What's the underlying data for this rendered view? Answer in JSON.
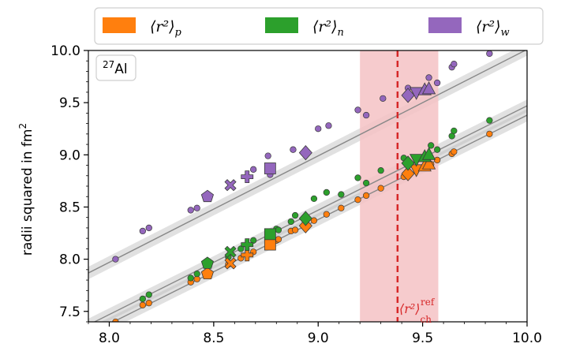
{
  "chart_data": {
    "type": "scatter",
    "title": "",
    "xlabel": "",
    "ylabel": "radii squared in fm",
    "ylabel_sup": "2",
    "xlim": [
      7.9,
      10.0
    ],
    "ylim": [
      7.4,
      10.0
    ],
    "x_ticks": [
      8.0,
      8.5,
      9.0,
      9.5,
      10.0
    ],
    "x_tick_labels": [
      "8.0",
      "8.5",
      "9.0",
      "9.5",
      "10.0"
    ],
    "y_ticks": [
      7.5,
      8.0,
      8.5,
      9.0,
      9.5,
      10.0
    ],
    "y_tick_labels": [
      "7.5",
      "8.0",
      "8.5",
      "9.0",
      "9.5",
      "10.0"
    ],
    "annotation": {
      "sup": "27",
      "text": "Al"
    },
    "reference": {
      "value": 9.38,
      "band": [
        9.2,
        9.575
      ],
      "label": "⟨r²⟩",
      "label_sub": "ch",
      "label_sup": "ref",
      "line_color": "#d62728",
      "band_color": "#f4c2c4"
    },
    "legend": {
      "position": "top",
      "entries": [
        {
          "label": "⟨r²⟩",
          "sub": "p",
          "color": "#ff7f0e"
        },
        {
          "label": "⟨r²⟩",
          "sub": "n",
          "color": "#2ca02c"
        },
        {
          "label": "⟨r²⟩",
          "sub": "w",
          "color": "#9467bd"
        }
      ]
    },
    "series": [
      {
        "name": "proton",
        "color": "#ff7f0e",
        "fit": {
          "slope": 1.0,
          "intercept": -0.62
        },
        "small_x": [
          8.03,
          8.16,
          8.19,
          8.39,
          8.42,
          8.57,
          8.63,
          8.69,
          8.8,
          8.81,
          8.87,
          8.89,
          8.98,
          9.04,
          9.11,
          9.19,
          9.23,
          9.3,
          9.41,
          9.54,
          9.57,
          9.64,
          9.65,
          9.82
        ],
        "small_y": [
          7.4,
          7.56,
          7.58,
          7.78,
          7.81,
          7.95,
          8.01,
          8.07,
          8.18,
          8.19,
          8.27,
          8.28,
          8.37,
          8.43,
          8.49,
          8.57,
          8.61,
          8.68,
          8.79,
          8.91,
          8.95,
          9.01,
          9.03,
          9.2
        ],
        "markers": [
          {
            "shape": "pentagon",
            "x": 8.47,
            "y": 7.86
          },
          {
            "shape": "x",
            "x": 8.58,
            "y": 7.96
          },
          {
            "shape": "plus",
            "x": 8.66,
            "y": 8.04
          },
          {
            "shape": "square",
            "x": 8.77,
            "y": 8.14
          },
          {
            "shape": "diamond",
            "x": 8.94,
            "y": 8.32
          },
          {
            "shape": "diamond",
            "x": 9.43,
            "y": 8.82
          },
          {
            "shape": "triangle-down",
            "x": 9.47,
            "y": 8.86
          },
          {
            "shape": "triangle-up",
            "x": 9.51,
            "y": 8.89
          },
          {
            "shape": "triangle-up",
            "x": 9.53,
            "y": 8.91
          }
        ]
      },
      {
        "name": "neutron",
        "color": "#2ca02c",
        "fit": {
          "slope": 1.0,
          "intercept": -0.53
        },
        "small_x": [
          8.03,
          8.16,
          8.19,
          8.39,
          8.42,
          8.57,
          8.63,
          8.69,
          8.8,
          8.81,
          8.87,
          8.89,
          8.98,
          9.04,
          9.11,
          9.19,
          9.23,
          9.3,
          9.41,
          9.54,
          9.57,
          9.64,
          9.65,
          9.82
        ],
        "small_y": [
          7.37,
          7.62,
          7.66,
          7.82,
          7.86,
          8.02,
          8.1,
          8.18,
          8.29,
          8.28,
          8.36,
          8.42,
          8.58,
          8.64,
          8.62,
          8.78,
          8.73,
          8.85,
          8.97,
          9.09,
          9.05,
          9.18,
          9.23,
          9.33
        ],
        "markers": [
          {
            "shape": "pentagon",
            "x": 8.47,
            "y": 7.96
          },
          {
            "shape": "x",
            "x": 8.58,
            "y": 8.07
          },
          {
            "shape": "plus",
            "x": 8.66,
            "y": 8.14
          },
          {
            "shape": "square",
            "x": 8.77,
            "y": 8.24
          },
          {
            "shape": "diamond",
            "x": 8.94,
            "y": 8.39
          },
          {
            "shape": "diamond",
            "x": 9.43,
            "y": 8.92
          },
          {
            "shape": "triangle-down",
            "x": 9.47,
            "y": 8.96
          },
          {
            "shape": "triangle-up",
            "x": 9.51,
            "y": 8.98
          },
          {
            "shape": "triangle-up",
            "x": 9.53,
            "y": 9.0
          }
        ]
      },
      {
        "name": "weak",
        "color": "#9467bd",
        "fit": {
          "slope": 1.02,
          "intercept": -0.19
        },
        "small_x": [
          8.03,
          8.16,
          8.19,
          8.39,
          8.42,
          8.69,
          8.76,
          8.77,
          8.88,
          9.0,
          9.05,
          9.19,
          9.23,
          9.31,
          9.43,
          9.53,
          9.57,
          9.64,
          9.65,
          9.82
        ],
        "small_y": [
          8.0,
          8.27,
          8.3,
          8.47,
          8.49,
          8.86,
          8.99,
          8.81,
          9.05,
          9.25,
          9.28,
          9.43,
          9.38,
          9.54,
          9.64,
          9.74,
          9.69,
          9.84,
          9.87,
          9.97
        ],
        "markers": [
          {
            "shape": "pentagon",
            "x": 8.47,
            "y": 8.6
          },
          {
            "shape": "x",
            "x": 8.58,
            "y": 8.71
          },
          {
            "shape": "plus",
            "x": 8.66,
            "y": 8.79
          },
          {
            "shape": "square",
            "x": 8.77,
            "y": 8.87
          },
          {
            "shape": "diamond",
            "x": 8.94,
            "y": 9.02
          },
          {
            "shape": "diamond",
            "x": 9.43,
            "y": 9.57
          },
          {
            "shape": "triangle-down",
            "x": 9.47,
            "y": 9.6
          },
          {
            "shape": "triangle-up",
            "x": 9.51,
            "y": 9.62
          },
          {
            "shape": "triangle-up",
            "x": 9.53,
            "y": 9.63
          }
        ]
      }
    ]
  }
}
